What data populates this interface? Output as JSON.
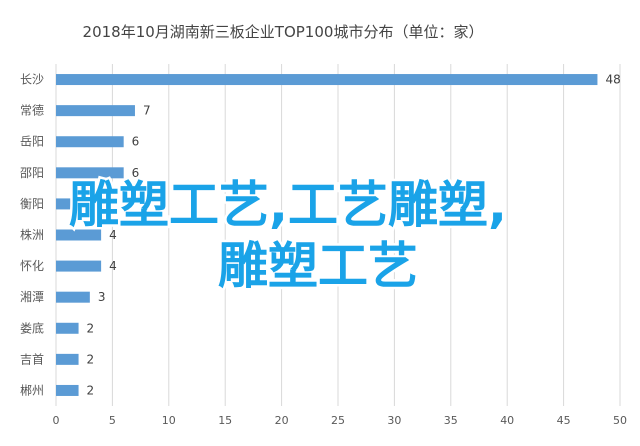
{
  "chart_data": {
    "type": "bar",
    "orientation": "horizontal",
    "title": "2018年10月湖南新三板企业TOP100城市分布（单位：家）",
    "categories": [
      "长沙",
      "常德",
      "岳阳",
      "邵阳",
      "衡阳",
      "株洲",
      "怀化",
      "湘潭",
      "娄底",
      "吉首",
      "郴州"
    ],
    "values": [
      48,
      7,
      6,
      6,
      5,
      4,
      4,
      3,
      2,
      2,
      2
    ],
    "xlim": [
      0,
      50
    ],
    "xticks": [
      0,
      5,
      10,
      15,
      20,
      25,
      30,
      35,
      40,
      45,
      50
    ],
    "grid": true,
    "bar_color": "#5b9bd5"
  },
  "overlay": {
    "line1": "雕塑工艺,工艺雕塑,",
    "line2": "雕塑工艺",
    "color": "#1aa3e8"
  }
}
